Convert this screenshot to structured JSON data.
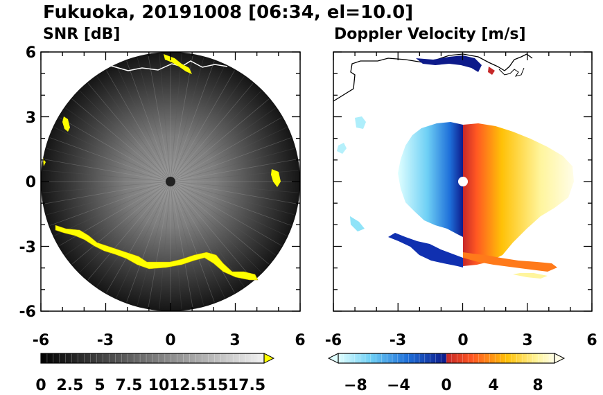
{
  "figure": {
    "title": "Fukuoka, 20191008 [06:34, el=10.0]"
  },
  "chart_data": [
    {
      "type": "heatmap",
      "title": "SNR [dB]",
      "xlim": [
        -6,
        6
      ],
      "ylim": [
        -6,
        6
      ],
      "x_ticks": [
        "-6",
        "-3",
        "0",
        "3",
        "6"
      ],
      "y_ticks": [
        "6",
        "3",
        "0",
        "-3",
        "-6"
      ],
      "radar_range": 6,
      "colorbar": {
        "min": 0,
        "max": 19,
        "ticks": [
          "0",
          "2.5",
          "5",
          "7.5",
          "10",
          "12.5",
          "15",
          "17.5"
        ],
        "tick_values": [
          0,
          2.5,
          5,
          7.5,
          10,
          12.5,
          15,
          17.5
        ],
        "colors": [
          "#000000",
          "#ffffff",
          "#ffff00"
        ],
        "extend": "max"
      }
    },
    {
      "type": "heatmap",
      "title": "Doppler Velocity [m/s]",
      "xlim": [
        -6,
        6
      ],
      "ylim": [
        -6,
        6
      ],
      "x_ticks": [
        "-6",
        "-3",
        "0",
        "3",
        "6"
      ],
      "y_ticks": [
        "6",
        "3",
        "0",
        "-3",
        "-6"
      ],
      "colorbar": {
        "min": -10,
        "max": 10,
        "ticks": [
          "−8",
          "−4",
          "0",
          "4",
          "8"
        ],
        "tick_values": [
          -8,
          -4,
          0,
          4,
          8
        ],
        "colors": [
          "#e0ffff",
          "#4fc3f7",
          "#1565c0",
          "#0d1a8a",
          "#b71c1c",
          "#ff5722",
          "#ffb300",
          "#fff59d",
          "#fffde7"
        ],
        "extend": "both"
      }
    }
  ]
}
